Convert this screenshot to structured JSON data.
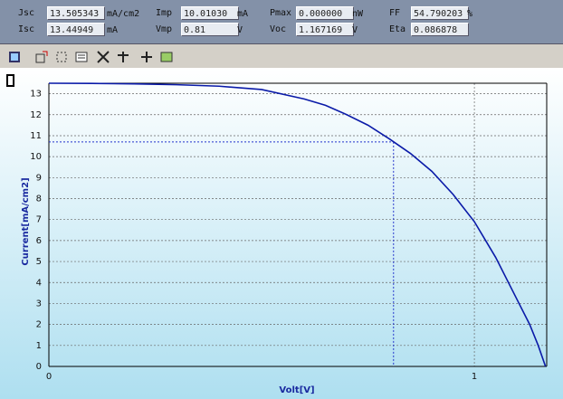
{
  "panel": {
    "fields": [
      {
        "label": "Jsc",
        "value": "13.505343",
        "unit": "mA/cm2"
      },
      {
        "label": "Imp",
        "value": "10.01030",
        "unit": "mA"
      },
      {
        "label": "Pmax",
        "value": "0.000000",
        "unit": "nW"
      },
      {
        "label": "FF",
        "value": "54.790203",
        "unit": "%"
      },
      {
        "label": "Isc",
        "value": "13.44949",
        "unit": "mA"
      },
      {
        "label": "Vmp",
        "value": "0.81",
        "unit": "V"
      },
      {
        "label": "Voc",
        "value": "1.167169",
        "unit": "V"
      },
      {
        "label": "Eta",
        "value": "0.086878"
      }
    ]
  },
  "chart_data": {
    "type": "line",
    "xlabel": "Volt[V]",
    "ylabel": "Current[mA/cm2]",
    "x": [
      0,
      0.1,
      0.2,
      0.3,
      0.4,
      0.5,
      0.6,
      0.65,
      0.7,
      0.75,
      0.8,
      0.85,
      0.9,
      0.95,
      1.0,
      1.05,
      1.1,
      1.13,
      1.15,
      1.167169
    ],
    "series": [
      {
        "name": "Current",
        "color": "#0a1aa8",
        "values": [
          13.5,
          13.49,
          13.47,
          13.43,
          13.36,
          13.2,
          12.75,
          12.45,
          12.0,
          11.5,
          10.85,
          10.15,
          9.3,
          8.2,
          6.9,
          5.2,
          3.2,
          2.0,
          1.0,
          0
        ]
      }
    ],
    "xlim": [
      0,
      1.17
    ],
    "ylim": [
      0,
      13.5
    ],
    "xticks": [
      0,
      1
    ],
    "yticks": [
      0,
      1,
      2,
      3,
      4,
      5,
      6,
      7,
      8,
      9,
      10,
      11,
      12,
      13
    ],
    "grid": true,
    "marker": {
      "x": 0.81,
      "y": 10.7
    }
  }
}
